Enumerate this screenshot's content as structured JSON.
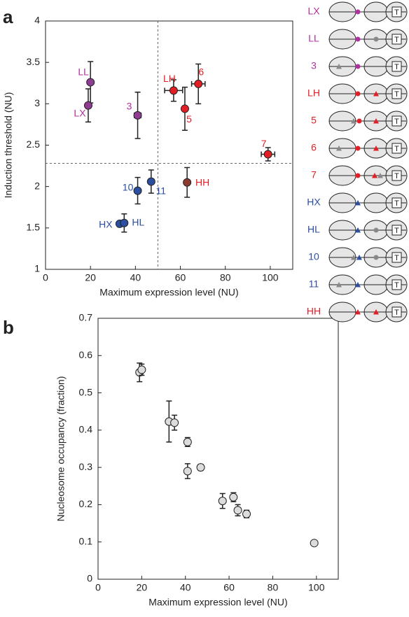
{
  "chart_data": [
    {
      "type": "scatter",
      "panel": "a",
      "x_label": "Maximum expression level (NU)",
      "y_label": "Induction threshold (NU)",
      "xlim": [
        0,
        110
      ],
      "ylim": [
        1,
        4
      ],
      "xticks": [
        0,
        20,
        40,
        60,
        80,
        100
      ],
      "yticks": [
        1,
        1.5,
        2,
        2.5,
        3,
        3.5,
        4
      ],
      "threshold_lines": {
        "x": 50,
        "y": 2.28
      },
      "points": [
        {
          "label": "LL",
          "x": 20,
          "y": 3.26,
          "xerr": null,
          "yerr": 0.25,
          "color": "#8e3b93",
          "label_color": "#b0309f"
        },
        {
          "label": "LX",
          "x": 19,
          "y": 2.98,
          "xerr": null,
          "yerr": 0.2,
          "color": "#8e3b93",
          "label_color": "#b0309f"
        },
        {
          "label": "3",
          "x": 41,
          "y": 2.86,
          "xerr": 1.5,
          "yerr": 0.28,
          "color": "#8e3b93",
          "label_color": "#b0309f"
        },
        {
          "label": "LH",
          "x": 57,
          "y": 3.16,
          "xerr": 4,
          "yerr": 0.13,
          "color": "#e31e24",
          "label_color": "#e31e24"
        },
        {
          "label": "6",
          "x": 68,
          "y": 3.24,
          "xerr": 3,
          "yerr": 0.24,
          "color": "#e31e24",
          "label_color": "#e31e24"
        },
        {
          "label": "5",
          "x": 62,
          "y": 2.94,
          "xerr": null,
          "yerr": 0.26,
          "color": "#e31e24",
          "label_color": "#e31e24"
        },
        {
          "label": "7",
          "x": 99,
          "y": 2.39,
          "xerr": 3,
          "yerr": 0.08,
          "color": "#e31e24",
          "label_color": "#e31e24"
        },
        {
          "label": "HH",
          "x": 63,
          "y": 2.05,
          "xerr": null,
          "yerr": 0.18,
          "color": "#8b3a2f",
          "label_color": "#e31e24"
        },
        {
          "label": "10",
          "x": 41,
          "y": 1.95,
          "xerr": null,
          "yerr": 0.16,
          "color": "#2b4ea0",
          "label_color": "#2b4ea0"
        },
        {
          "label": "11",
          "x": 47,
          "y": 2.06,
          "xerr": null,
          "yerr": 0.14,
          "color": "#2b4ea0",
          "label_color": "#2b4ea0"
        },
        {
          "label": "HX",
          "x": 33,
          "y": 1.55,
          "xerr": null,
          "yerr": null,
          "color": "#2b4ea0",
          "label_color": "#2b4ea0"
        },
        {
          "label": "HL",
          "x": 35,
          "y": 1.56,
          "xerr": null,
          "yerr": 0.11,
          "color": "#2b4ea0",
          "label_color": "#2b4ea0"
        }
      ]
    },
    {
      "type": "scatter",
      "panel": "b",
      "x_label": "Maximum expression level (NU)",
      "y_label": "Nucleosome occupancy (fraction)",
      "xlim": [
        0,
        110
      ],
      "ylim": [
        0,
        0.7
      ],
      "xticks": [
        0,
        20,
        40,
        60,
        80,
        100
      ],
      "yticks": [
        0,
        0.1,
        0.2,
        0.3,
        0.4,
        0.5,
        0.6,
        0.7
      ],
      "points": [
        {
          "x": 19,
          "y": 0.555,
          "xerr": null,
          "yerr": 0.025,
          "color": "#dcdcdc"
        },
        {
          "x": 20,
          "y": 0.562,
          "xerr": null,
          "yerr": 0.015,
          "color": "#dcdcdc"
        },
        {
          "x": 32.5,
          "y": 0.423,
          "xerr": null,
          "yerr": 0.055,
          "color": "#dcdcdc"
        },
        {
          "x": 35,
          "y": 0.42,
          "xerr": null,
          "yerr": 0.02,
          "color": "#dcdcdc"
        },
        {
          "x": 41,
          "y": 0.368,
          "xerr": null,
          "yerr": 0.012,
          "color": "#dcdcdc"
        },
        {
          "x": 41,
          "y": 0.29,
          "xerr": null,
          "yerr": 0.02,
          "color": "#dcdcdc"
        },
        {
          "x": 47,
          "y": 0.3,
          "xerr": null,
          "yerr": 0.008,
          "color": "#dcdcdc"
        },
        {
          "x": 57,
          "y": 0.21,
          "xerr": null,
          "yerr": 0.02,
          "color": "#dcdcdc"
        },
        {
          "x": 62,
          "y": 0.22,
          "xerr": null,
          "yerr": 0.012,
          "color": "#dcdcdc"
        },
        {
          "x": 64,
          "y": 0.185,
          "xerr": null,
          "yerr": 0.015,
          "color": "#dcdcdc"
        },
        {
          "x": 68,
          "y": 0.175,
          "xerr": null,
          "yerr": 0.01,
          "color": "#dcdcdc"
        },
        {
          "x": 99,
          "y": 0.097,
          "xerr": null,
          "yerr": 0.005,
          "color": "#dcdcdc"
        }
      ]
    }
  ],
  "construct_diagram": {
    "gene_symbol": "T",
    "rows": [
      {
        "label": "LX",
        "color": "#b0309f"
      },
      {
        "label": "LL",
        "color": "#b0309f"
      },
      {
        "label": "3",
        "color": "#b0309f"
      },
      {
        "label": "LH",
        "color": "#e31e24"
      },
      {
        "label": "5",
        "color": "#e31e24"
      },
      {
        "label": "6",
        "color": "#e31e24"
      },
      {
        "label": "7",
        "color": "#e31e24"
      },
      {
        "label": "HX",
        "color": "#2b4ea0"
      },
      {
        "label": "HL",
        "color": "#2b4ea0"
      },
      {
        "label": "10",
        "color": "#2b4ea0"
      },
      {
        "label": "11",
        "color": "#2b4ea0"
      },
      {
        "label": "HH",
        "color": "#e31e24"
      }
    ]
  }
}
